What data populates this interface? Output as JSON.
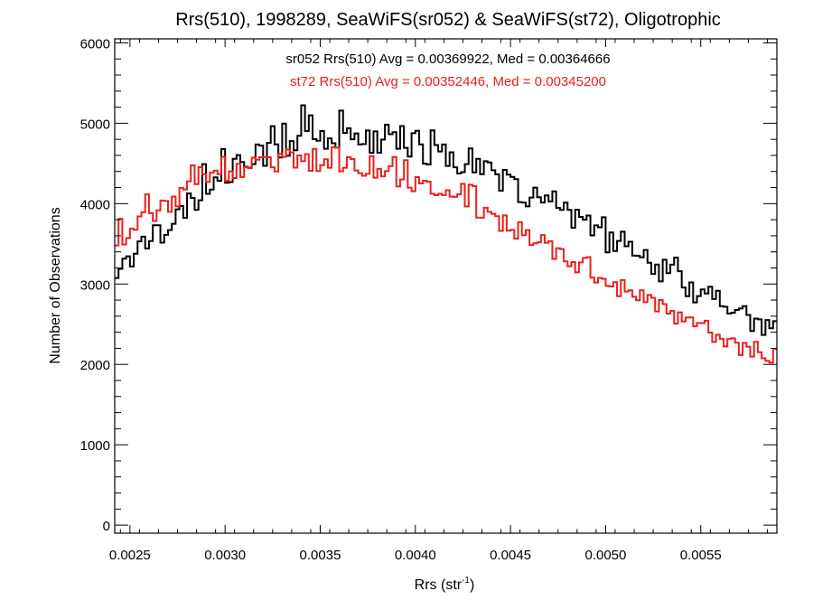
{
  "chart_data": {
    "type": "histogram",
    "title": "Rrs(510), 1998289, SeaWiFS(sr052) & SeaWiFS(st72), Oligotrophic",
    "xlabel_main": "Rrs (str",
    "xlabel_sup": "-1",
    "xlabel_end": ")",
    "ylabel": "Number of Observations",
    "xlim": [
      0.00242,
      0.0059
    ],
    "ylim": [
      -100,
      6050
    ],
    "grid": false,
    "legend_placement": "top-center",
    "x_ticks": [
      {
        "value": 0.0025,
        "label": "0.0025"
      },
      {
        "value": 0.003,
        "label": "0.0030"
      },
      {
        "value": 0.0035,
        "label": "0.0035"
      },
      {
        "value": 0.004,
        "label": "0.0040"
      },
      {
        "value": 0.0045,
        "label": "0.0045"
      },
      {
        "value": 0.005,
        "label": "0.0050"
      },
      {
        "value": 0.0055,
        "label": "0.0055"
      }
    ],
    "y_ticks": [
      {
        "value": 0,
        "label": "0"
      },
      {
        "value": 1000,
        "label": "1000"
      },
      {
        "value": 2000,
        "label": "2000"
      },
      {
        "value": 3000,
        "label": "3000"
      },
      {
        "value": 4000,
        "label": "4000"
      },
      {
        "value": 5000,
        "label": "5000"
      },
      {
        "value": 6000,
        "label": "6000"
      }
    ],
    "bin_width": 2e-05,
    "series": [
      {
        "name": "sr052",
        "color": "#000000",
        "annotation": "sr052 Rrs(510) Avg = 0.00369922, Med = 0.00364666",
        "avg": 0.00369922,
        "median": 0.00364666,
        "peak_x": 0.00355,
        "peak_y": 4800,
        "left_tail": 1700,
        "right_tail": 2650,
        "noise": 0.055
      },
      {
        "name": "st72",
        "color": "#e8201c",
        "annotation": "st72 Rrs(510) Avg = 0.00352446, Med = 0.00345200",
        "avg": 0.00352446,
        "median": 0.003452,
        "peak_x": 0.00335,
        "peak_y": 4520,
        "left_tail": 1850,
        "right_tail": 2600,
        "noise": 0.04
      }
    ]
  }
}
